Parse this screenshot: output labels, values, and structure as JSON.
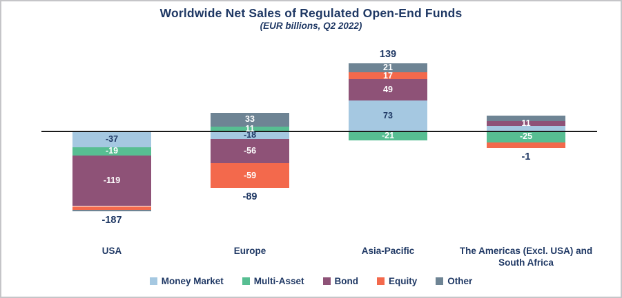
{
  "text_color": "#1F3864",
  "frame": {
    "border_color": "#c5c5c8",
    "background": "#ffffff"
  },
  "chart_data": {
    "type": "bar",
    "stacked": true,
    "title": "Worldwide Net Sales of Regulated Open-End Funds",
    "subtitle": "(EUR billions, Q2 2022)",
    "unit": "EUR billions",
    "period": "Q2 2022",
    "grid": false,
    "legend_position": "bottom",
    "axis": {
      "zero_line": true,
      "value_range_approx": [
        -190,
        165
      ]
    },
    "categories": [
      "USA",
      "Europe",
      "Asia-Pacific",
      "The Americas (Excl. USA) and South Africa"
    ],
    "series": [
      {
        "name": "Money Market",
        "color": "#A5C8E1",
        "label_color": "#1F3864",
        "values": [
          -37,
          -18,
          73,
          13
        ],
        "labels": [
          "-37",
          "-18",
          "73",
          ""
        ]
      },
      {
        "name": "Multi-Asset",
        "color": "#57BE92",
        "label_color": "#FFFFFF",
        "values": [
          -19,
          11,
          -21,
          -25
        ],
        "labels": [
          "-19",
          "11",
          "-21",
          "-25"
        ]
      },
      {
        "name": "Bond",
        "color": "#8E5277",
        "label_color": "#FFFFFF",
        "values": [
          -119,
          -56,
          49,
          11
        ],
        "labels": [
          "-119",
          "-56",
          "49",
          "11"
        ]
      },
      {
        "name": "Equity",
        "color": "#F3694C",
        "label_color": "#FFFFFF",
        "values": [
          -9,
          -59,
          17,
          -13
        ],
        "labels": [
          "",
          "-59",
          "17",
          ""
        ]
      },
      {
        "name": "Other",
        "color": "#6E8494",
        "label_color": "#FFFFFF",
        "values": [
          -3,
          33,
          21,
          13
        ],
        "labels": [
          "",
          "33",
          "21",
          ""
        ]
      }
    ],
    "totals": {
      "values": [
        -187,
        -89,
        139,
        -1
      ],
      "labels": [
        "-187",
        "-89",
        "139",
        "-1"
      ]
    }
  }
}
